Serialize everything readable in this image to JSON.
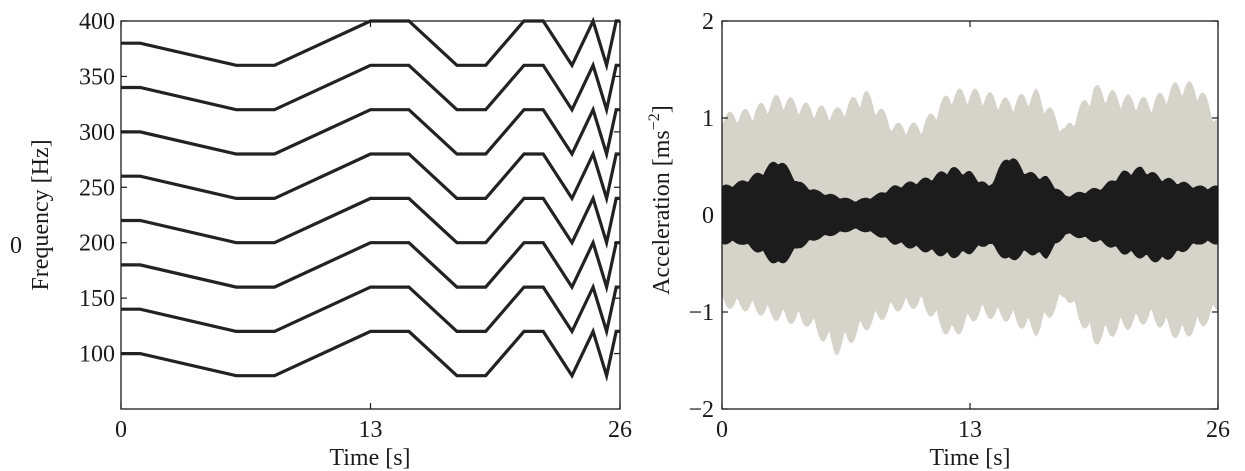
{
  "chart_data": [
    {
      "type": "line",
      "xlabel": "Time [s]",
      "ylabel": "Frequency [Hz]",
      "xlim": [
        0,
        26
      ],
      "ylim": [
        50,
        400
      ],
      "xticks": [
        0,
        13,
        26
      ],
      "yticks": [
        100,
        150,
        200,
        250,
        300,
        350,
        400
      ],
      "side_label": "0",
      "line_color": "#222222",
      "profile_x": [
        0,
        1,
        6,
        8,
        13,
        15,
        17.5,
        19,
        21,
        22,
        23.5,
        24.6,
        25.3,
        25.8,
        26
      ],
      "profile_offset": [
        0,
        0,
        -20,
        -20,
        20,
        20,
        -20,
        -20,
        20,
        20,
        -20,
        20,
        -20,
        20,
        20
      ],
      "series": [
        {
          "base": 100
        },
        {
          "base": 140
        },
        {
          "base": 180
        },
        {
          "base": 220
        },
        {
          "base": 260
        },
        {
          "base": 300
        },
        {
          "base": 340
        },
        {
          "base": 380
        }
      ]
    },
    {
      "type": "area",
      "xlabel": "Time [s]",
      "ylabel": "Acceleration [ms",
      "ylabel_sup": "−2",
      "ylabel_tail": "]",
      "xlim": [
        0,
        26
      ],
      "ylim": [
        -2,
        2
      ],
      "xticks": [
        0,
        13,
        26
      ],
      "yticks": [
        -2,
        -1,
        0,
        1,
        2
      ],
      "ytick_labels": [
        "−2",
        "−1",
        "0",
        "1",
        "2"
      ],
      "series": [
        {
          "color": "#d6d3cb",
          "x": [
            0,
            1.5,
            3,
            4.5,
            6,
            7.5,
            9,
            10.5,
            12,
            13.5,
            15,
            16.5,
            18,
            19.5,
            21,
            22.5,
            24,
            25,
            26
          ],
          "upper": [
            1.05,
            1.1,
            1.25,
            1.15,
            1.1,
            1.3,
            0.95,
            0.95,
            1.3,
            1.3,
            1.2,
            1.3,
            0.9,
            1.35,
            1.25,
            1.2,
            1.4,
            1.35,
            1.0
          ],
          "lower": [
            -0.95,
            -1.0,
            -1.1,
            -1.15,
            -1.45,
            -1.2,
            -1.0,
            -0.95,
            -1.3,
            -1.05,
            -1.1,
            -1.25,
            -0.85,
            -1.35,
            -1.2,
            -1.1,
            -1.3,
            -1.2,
            -1.0
          ]
        },
        {
          "color": "#1c1c1c",
          "x": [
            0,
            1,
            2,
            3,
            4,
            5,
            6,
            7,
            8,
            9,
            10,
            11,
            12,
            13,
            14,
            15,
            16,
            17,
            18,
            19,
            20,
            21,
            22,
            23,
            24,
            25,
            26
          ],
          "upper": [
            0.3,
            0.35,
            0.45,
            0.6,
            0.35,
            0.25,
            0.2,
            0.15,
            0.2,
            0.3,
            0.35,
            0.4,
            0.5,
            0.45,
            0.3,
            0.65,
            0.45,
            0.4,
            0.2,
            0.25,
            0.3,
            0.45,
            0.5,
            0.4,
            0.35,
            0.3,
            0.3
          ],
          "lower": [
            -0.3,
            -0.3,
            -0.4,
            -0.55,
            -0.35,
            -0.25,
            -0.2,
            -0.15,
            -0.2,
            -0.3,
            -0.35,
            -0.4,
            -0.45,
            -0.4,
            -0.3,
            -0.5,
            -0.4,
            -0.45,
            -0.2,
            -0.25,
            -0.3,
            -0.4,
            -0.45,
            -0.5,
            -0.4,
            -0.3,
            -0.3
          ]
        }
      ]
    }
  ]
}
